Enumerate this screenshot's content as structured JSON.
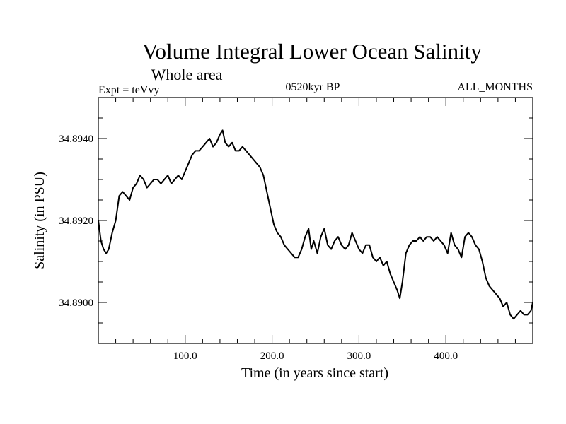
{
  "chart_data": {
    "type": "line",
    "title": "Volume Integral Lower Ocean Salinity",
    "subtitle": "Whole area",
    "left_label": "Expt = teVvy",
    "center_label": "0520kyr BP",
    "right_label": "ALL_MONTHS",
    "xlabel": "Time (in years since start)",
    "ylabel": "Salinity (in PSU)",
    "xlim": [
      0,
      500
    ],
    "ylim": [
      34.889,
      34.895
    ],
    "xticks": [
      100,
      200,
      300,
      400
    ],
    "xtick_labels": [
      "100.0",
      "200.0",
      "300.0",
      "400.0"
    ],
    "xminor_step": 20,
    "yticks": [
      34.89,
      34.892,
      34.894
    ],
    "ytick_labels": [
      "34.8900",
      "34.8920",
      "34.8940"
    ],
    "yminor_step": 0.0005,
    "series": [
      {
        "name": "salinity",
        "color": "#000000",
        "x": [
          0,
          3,
          6,
          9,
          12,
          16,
          20,
          24,
          28,
          32,
          36,
          40,
          44,
          48,
          52,
          56,
          60,
          64,
          68,
          72,
          76,
          80,
          84,
          88,
          92,
          96,
          100,
          104,
          108,
          112,
          116,
          120,
          124,
          128,
          132,
          136,
          140,
          143,
          146,
          150,
          154,
          158,
          162,
          166,
          170,
          174,
          178,
          182,
          186,
          190,
          194,
          198,
          202,
          206,
          210,
          214,
          218,
          222,
          226,
          230,
          234,
          238,
          242,
          245,
          248,
          252,
          256,
          260,
          264,
          268,
          272,
          276,
          280,
          284,
          288,
          292,
          296,
          300,
          304,
          308,
          312,
          316,
          320,
          324,
          328,
          332,
          336,
          340,
          344,
          347,
          350,
          354,
          358,
          362,
          366,
          370,
          374,
          378,
          382,
          386,
          390,
          394,
          398,
          402,
          406,
          410,
          414,
          418,
          422,
          426,
          430,
          434,
          438,
          442,
          446,
          450,
          454,
          458,
          462,
          466,
          470,
          474,
          478,
          482,
          486,
          490,
          494,
          498,
          500
        ],
        "y": [
          34.892,
          34.8915,
          34.8913,
          34.8912,
          34.8913,
          34.8917,
          34.892,
          34.8926,
          34.8927,
          34.8926,
          34.8925,
          34.8928,
          34.8929,
          34.8931,
          34.893,
          34.8928,
          34.8929,
          34.893,
          34.893,
          34.8929,
          34.893,
          34.8931,
          34.8929,
          34.893,
          34.8931,
          34.893,
          34.8932,
          34.8934,
          34.8936,
          34.8937,
          34.8937,
          34.8938,
          34.8939,
          34.894,
          34.8938,
          34.8939,
          34.8941,
          34.8942,
          34.8939,
          34.8938,
          34.8939,
          34.8937,
          34.8937,
          34.8938,
          34.8937,
          34.8936,
          34.8935,
          34.8934,
          34.8933,
          34.8931,
          34.8927,
          34.8923,
          34.8919,
          34.8917,
          34.8916,
          34.8914,
          34.8913,
          34.8912,
          34.8911,
          34.8911,
          34.8913,
          34.8916,
          34.8918,
          34.8913,
          34.8915,
          34.8912,
          34.8916,
          34.8918,
          34.8914,
          34.8913,
          34.8915,
          34.8916,
          34.8914,
          34.8913,
          34.8914,
          34.8917,
          34.8915,
          34.8913,
          34.8912,
          34.8914,
          34.8914,
          34.8911,
          34.891,
          34.8911,
          34.8909,
          34.891,
          34.8907,
          34.8905,
          34.8903,
          34.8901,
          34.8905,
          34.8912,
          34.8914,
          34.8915,
          34.8915,
          34.8916,
          34.8915,
          34.8916,
          34.8916,
          34.8915,
          34.8916,
          34.8915,
          34.8914,
          34.8912,
          34.8917,
          34.8914,
          34.8913,
          34.8911,
          34.8916,
          34.8917,
          34.8916,
          34.8914,
          34.8913,
          34.891,
          34.8906,
          34.8904,
          34.8903,
          34.8902,
          34.8901,
          34.8899,
          34.89,
          34.8897,
          34.8896,
          34.8897,
          34.8898,
          34.8897,
          34.8897,
          34.8898,
          34.89
        ]
      }
    ]
  }
}
